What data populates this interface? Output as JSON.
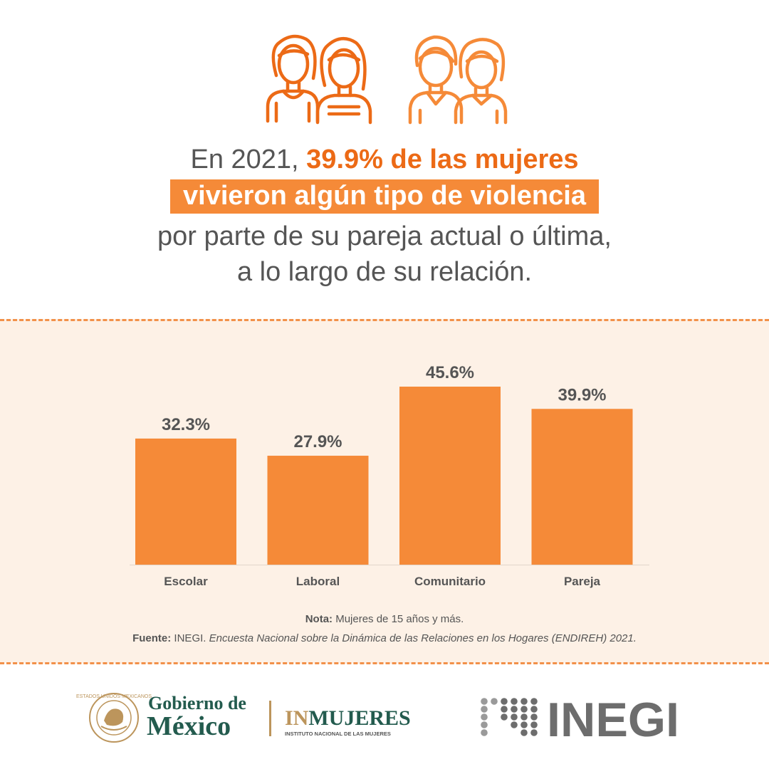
{
  "header": {
    "line1_prefix": "En 2021, ",
    "line1_highlight": "39.9% de las mujeres",
    "line2_highlight_box": "vivieron algún tipo de violencia",
    "line3": "por parte de su pareja actual o última,",
    "line4": "a lo largo de su relación.",
    "icons": [
      "two-women-icon",
      "boy-and-girl-icon"
    ]
  },
  "chart_data": {
    "type": "bar",
    "categories": [
      "Escolar",
      "Laboral",
      "Comunitario",
      "Pareja"
    ],
    "values": [
      32.3,
      27.9,
      45.6,
      39.9
    ],
    "value_labels": [
      "32.3%",
      "27.9%",
      "45.6%",
      "39.9%"
    ],
    "title": "",
    "xlabel": "",
    "ylabel": "",
    "ylim": [
      0,
      45.6
    ],
    "grid": false,
    "bar_color": "#f58a38",
    "label_color": "#555555"
  },
  "notes": {
    "nota_label": "Nota:",
    "nota_text": " Mujeres de 15 años y más.",
    "fuente_label": "Fuente:",
    "fuente_org": " INEGI. ",
    "fuente_title": "Encuesta Nacional sobre la Dinámica de las Relaciones en los Hogares (ENDIREH) 2021."
  },
  "footer": {
    "gob_line1": "Gobierno de",
    "gob_line2": "México",
    "seal_text": "ESTADOS UNIDOS MEXICANOS",
    "inmujeres_in": "IN",
    "inmujeres_mujeres": "MUJERES",
    "inmujeres_sub": "INSTITUTO NACIONAL DE LAS MUJERES",
    "inegi": "INEGI"
  },
  "colors": {
    "accent": "#f58a38",
    "accent_dark": "#ec6a16",
    "panel_bg": "#fdf1e6",
    "text_gray": "#555555",
    "gob_green": "#235b4e",
    "gold": "#bc955c",
    "inegi_gray": "#6d6d6d"
  }
}
